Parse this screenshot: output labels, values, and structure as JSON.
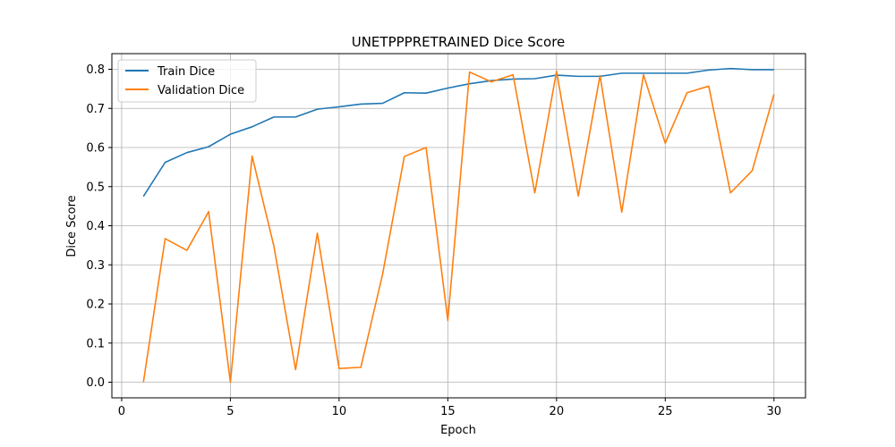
{
  "chart_data": {
    "type": "line",
    "title": "UNETPPPRETRAINED Dice Score",
    "xlabel": "Epoch",
    "ylabel": "Dice Score",
    "xlim": [
      -0.45,
      31.45
    ],
    "ylim": [
      -0.04,
      0.84
    ],
    "x_ticks": [
      0,
      5,
      10,
      15,
      20,
      25,
      30
    ],
    "y_ticks": [
      0.0,
      0.1,
      0.2,
      0.3,
      0.4,
      0.5,
      0.6,
      0.7,
      0.8
    ],
    "x_tick_labels": [
      "0",
      "5",
      "10",
      "15",
      "20",
      "25",
      "30"
    ],
    "y_tick_labels": [
      "0.0",
      "0.1",
      "0.2",
      "0.3",
      "0.4",
      "0.5",
      "0.6",
      "0.7",
      "0.8"
    ],
    "grid": true,
    "legend_position": "top-left",
    "x": [
      1,
      2,
      3,
      4,
      5,
      6,
      7,
      8,
      9,
      10,
      11,
      12,
      13,
      14,
      15,
      16,
      17,
      18,
      19,
      20,
      21,
      22,
      23,
      24,
      25,
      26,
      27,
      28,
      29,
      30
    ],
    "series": [
      {
        "name": "Train Dice",
        "color": "#1f77b4",
        "values": [
          0.475,
          0.562,
          0.587,
          0.602,
          0.634,
          0.653,
          0.678,
          0.678,
          0.698,
          0.704,
          0.711,
          0.713,
          0.74,
          0.739,
          0.752,
          0.763,
          0.771,
          0.775,
          0.776,
          0.785,
          0.782,
          0.782,
          0.79,
          0.79,
          0.79,
          0.79,
          0.798,
          0.802,
          0.799,
          0.799
        ]
      },
      {
        "name": "Validation Dice",
        "color": "#ff7f0e",
        "values": [
          0.0,
          0.367,
          0.337,
          0.436,
          0.0,
          0.578,
          0.348,
          0.032,
          0.381,
          0.035,
          0.038,
          0.276,
          0.577,
          0.6,
          0.158,
          0.793,
          0.768,
          0.786,
          0.484,
          0.795,
          0.476,
          0.784,
          0.435,
          0.786,
          0.611,
          0.74,
          0.757,
          0.484,
          0.541,
          0.736
        ]
      }
    ]
  }
}
